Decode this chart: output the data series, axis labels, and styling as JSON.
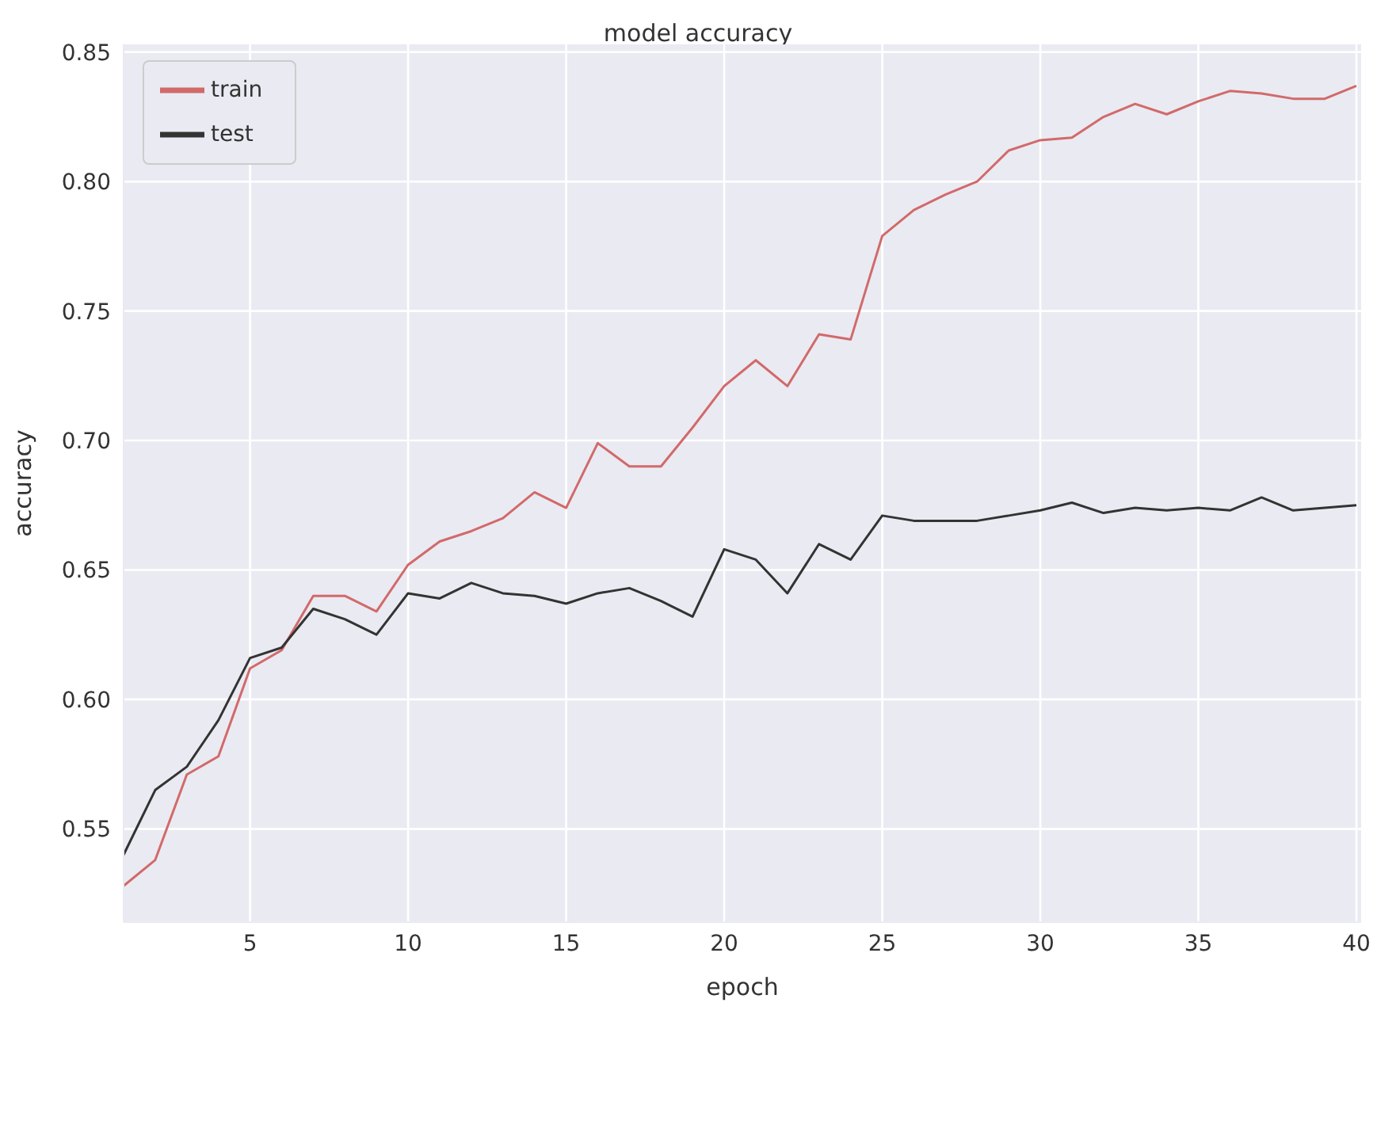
{
  "chart_data": {
    "type": "line",
    "title": "model accuracy",
    "xlabel": "epoch",
    "ylabel": "accuracy",
    "x": [
      1,
      2,
      3,
      4,
      5,
      6,
      7,
      8,
      9,
      10,
      11,
      12,
      13,
      14,
      15,
      16,
      17,
      18,
      19,
      20,
      21,
      22,
      23,
      24,
      25,
      26,
      27,
      28,
      29,
      30,
      31,
      32,
      33,
      34,
      35,
      36,
      37,
      38,
      39,
      40
    ],
    "series": [
      {
        "name": "train",
        "color": "#d16a6a",
        "values": [
          0.528,
          0.538,
          0.571,
          0.578,
          0.612,
          0.619,
          0.64,
          0.64,
          0.634,
          0.652,
          0.661,
          0.665,
          0.67,
          0.68,
          0.674,
          0.699,
          0.69,
          0.69,
          0.705,
          0.721,
          0.731,
          0.721,
          0.741,
          0.739,
          0.779,
          0.789,
          0.795,
          0.8,
          0.812,
          0.816,
          0.817,
          0.825,
          0.83,
          0.826,
          0.831,
          0.835,
          0.834,
          0.832,
          0.832,
          0.837
        ]
      },
      {
        "name": "test",
        "color": "#333333",
        "values": [
          0.54,
          0.565,
          0.574,
          0.592,
          0.616,
          0.62,
          0.635,
          0.631,
          0.625,
          0.641,
          0.639,
          0.645,
          0.641,
          0.64,
          0.637,
          0.641,
          0.643,
          0.638,
          0.632,
          0.658,
          0.654,
          0.641,
          0.66,
          0.654,
          0.671,
          0.669,
          0.669,
          0.669,
          0.671,
          0.673,
          0.676,
          0.672,
          0.674,
          0.673,
          0.674,
          0.673,
          0.678,
          0.673,
          0.674,
          0.675
        ]
      }
    ],
    "xlim": [
      1,
      40.15
    ],
    "xticks": [
      5,
      10,
      15,
      20,
      25,
      30,
      35,
      40
    ],
    "ylim": [
      0.514,
      0.853
    ],
    "yticks": [
      0.55,
      {
        "value": 0.6,
        "label": "0.60"
      },
      0.65,
      {
        "value": 0.7,
        "label": "0.70"
      },
      0.75,
      {
        "value": 0.8,
        "label": "0.80"
      },
      0.85
    ],
    "grid": true,
    "legend": "top left",
    "marker": "none",
    "line_style": "solid"
  }
}
